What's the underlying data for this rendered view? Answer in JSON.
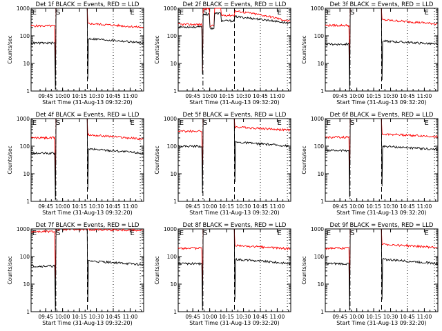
{
  "chart_data": [
    {
      "type": "line",
      "title": "Det 1f BLACK = Events, RED = LLD",
      "xlabel": "Start Time (31-Aug-13 09:32:20)",
      "ylabel": "Counts/sec",
      "yscale": "log",
      "ylim": [
        1,
        1000
      ],
      "xticks": [
        "09:45",
        "10:00",
        "10:15",
        "10:30",
        "10:45",
        "11:00"
      ],
      "markers": [
        "E",
        "S",
        "E"
      ],
      "shape": "a",
      "series": [
        {
          "color": "#ff0000",
          "pre": 230,
          "post": 280,
          "end": 200
        },
        {
          "color": "#000000",
          "pre": 55,
          "post": 80,
          "end": 55
        }
      ]
    },
    {
      "type": "line",
      "title": "Det 2f BLACK = Events, RED = LLD",
      "xlabel": "Start Time (31-Aug-13 09:32:20)",
      "ylabel": "Counts/sec",
      "yscale": "log",
      "ylim": [
        1,
        1000
      ],
      "xticks": [
        "09:45",
        "10:00",
        "10:15",
        "10:30",
        "10:45",
        "11:00"
      ],
      "markers": [
        "E",
        "S",
        "E"
      ],
      "shape": "b",
      "series": [
        {
          "color": "#ff0000",
          "pre": 260,
          "post": 800,
          "end": 320
        },
        {
          "color": "#000000",
          "pre": 210,
          "post": 500,
          "end": 280
        }
      ]
    },
    {
      "type": "line",
      "title": "Det 3f BLACK = Events, RED = LLD",
      "xlabel": "Start Time (31-Aug-13 09:32:20)",
      "ylabel": "Counts/sec",
      "yscale": "log",
      "ylim": [
        1,
        1000
      ],
      "xticks": [
        "09:45",
        "10:00",
        "10:15",
        "10:30",
        "10:45",
        "11:00"
      ],
      "markers": [
        "E",
        "S",
        "E"
      ],
      "shape": "a",
      "series": [
        {
          "color": "#ff0000",
          "pre": 240,
          "post": 380,
          "end": 270
        },
        {
          "color": "#000000",
          "pre": 50,
          "post": 65,
          "end": 50
        }
      ]
    },
    {
      "type": "line",
      "title": "Det 4f BLACK = Events, RED = LLD",
      "xlabel": "Start Time (31-Aug-13 09:32:20)",
      "ylabel": "Counts/sec",
      "yscale": "log",
      "ylim": [
        1,
        1000
      ],
      "xticks": [
        "09:45",
        "10:00",
        "10:15",
        "10:30",
        "10:45",
        "11:00"
      ],
      "markers": [
        "E",
        "S",
        "E"
      ],
      "shape": "a",
      "series": [
        {
          "color": "#ff0000",
          "pre": 200,
          "post": 260,
          "end": 180
        },
        {
          "color": "#000000",
          "pre": 55,
          "post": 80,
          "end": 55
        }
      ]
    },
    {
      "type": "line",
      "title": "Det 5f BLACK = Events, RED = LLD",
      "xlabel": "Start Time (31-Aug-13 09:32:20)",
      "ylabel": "Counts/sec",
      "yscale": "log",
      "ylim": [
        1,
        1000
      ],
      "xticks": [
        "09:45",
        "10:00",
        "10:15",
        "10:30",
        "10:45",
        "11:00"
      ],
      "markers": [
        "E",
        "S",
        "E"
      ],
      "shape": "a",
      "series": [
        {
          "color": "#ff0000",
          "pre": 350,
          "post": 500,
          "end": 380
        },
        {
          "color": "#000000",
          "pre": 100,
          "post": 140,
          "end": 100
        }
      ]
    },
    {
      "type": "line",
      "title": "Det 6f BLACK = Events, RED = LLD",
      "xlabel": "Start Time (31-Aug-13 09:32:20)",
      "ylabel": "Counts/sec",
      "yscale": "log",
      "ylim": [
        1,
        1000
      ],
      "xticks": [
        "09:45",
        "10:00",
        "10:15",
        "10:30",
        "10:45",
        "11:00"
      ],
      "markers": [
        "E",
        "S",
        "E"
      ],
      "shape": "a",
      "series": [
        {
          "color": "#ff0000",
          "pre": 210,
          "post": 280,
          "end": 220
        },
        {
          "color": "#000000",
          "pre": 70,
          "post": 100,
          "end": 75
        }
      ]
    },
    {
      "type": "line",
      "title": "Det 7f BLACK = Events, RED = LLD",
      "xlabel": "Start Time (31-Aug-13 09:32:20)",
      "ylabel": "Counts/sec",
      "yscale": "log",
      "ylim": [
        1,
        1000
      ],
      "xticks": [
        "09:45",
        "10:00",
        "10:15",
        "10:30",
        "10:45",
        "11:00"
      ],
      "markers": [
        "E",
        "S",
        "E"
      ],
      "shape": "c",
      "series": [
        {
          "color": "#ff0000",
          "pre": 800,
          "post": 950,
          "end": 900
        },
        {
          "color": "#000000",
          "pre": 45,
          "post": 70,
          "end": 50
        }
      ]
    },
    {
      "type": "line",
      "title": "Det 8f BLACK = Events, RED = LLD",
      "xlabel": "Start Time (31-Aug-13 09:32:20)",
      "ylabel": "Counts/sec",
      "yscale": "log",
      "ylim": [
        1,
        1000
      ],
      "xticks": [
        "09:45",
        "10:00",
        "10:15",
        "10:30",
        "10:45",
        "11:00"
      ],
      "markers": [
        "E",
        "S",
        "E"
      ],
      "shape": "a",
      "series": [
        {
          "color": "#ff0000",
          "pre": 200,
          "post": 250,
          "end": 190
        },
        {
          "color": "#000000",
          "pre": 55,
          "post": 80,
          "end": 55
        }
      ]
    },
    {
      "type": "line",
      "title": "Det 9f BLACK = Events, RED = LLD",
      "xlabel": "Start Time (31-Aug-13 09:32:20)",
      "ylabel": "Counts/sec",
      "yscale": "log",
      "ylim": [
        1,
        1000
      ],
      "xticks": [
        "09:45",
        "10:00",
        "10:15",
        "10:30",
        "10:45",
        "11:00"
      ],
      "markers": [
        "E",
        "S",
        "E"
      ],
      "shape": "a",
      "series": [
        {
          "color": "#ff0000",
          "pre": 200,
          "post": 280,
          "end": 210
        },
        {
          "color": "#000000",
          "pre": 55,
          "post": 80,
          "end": 55
        }
      ]
    }
  ]
}
